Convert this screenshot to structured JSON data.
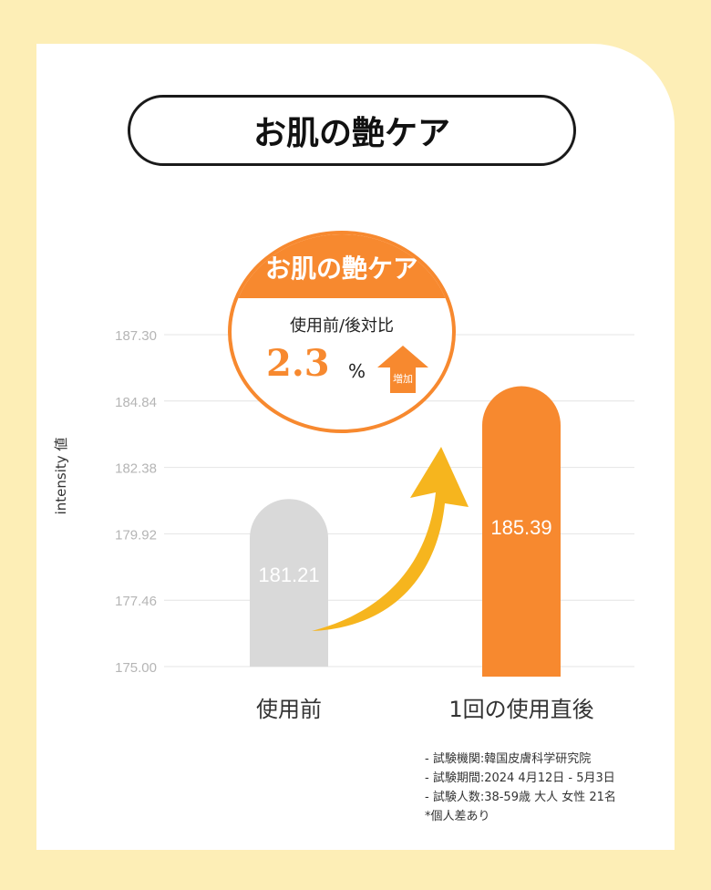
{
  "header": {
    "title": "お肌の艶ケア"
  },
  "badge": {
    "title": "お肌の艶ケア",
    "subtitle": "使用前/後対比",
    "value": "2.3",
    "unit": "%",
    "arrow_label": "増加"
  },
  "colors": {
    "accent": "#f7892f",
    "gray_bar": "#d9d9d9",
    "curve_arrow": "#f6b51e",
    "background": "#fdeeb6"
  },
  "chart_data": {
    "type": "bar",
    "categories": [
      "使用前",
      "1回の使用直後"
    ],
    "values": [
      181.21,
      185.39
    ],
    "value_labels": [
      "181.21",
      "185.39"
    ],
    "ylabel": "intensity 値",
    "ylim": [
      175.0,
      187.3
    ],
    "yticks": [
      "175.00",
      "177.46",
      "179.92",
      "182.38",
      "184.84",
      "187.30"
    ],
    "grid": true
  },
  "notes": [
    "- 試験機関:韓国皮膚科学研究院",
    "- 試験期間:2024 4月12日 - 5月3日",
    "- 試験人数:38-59歳 大人 女性 21名",
    "*個人差あり"
  ]
}
